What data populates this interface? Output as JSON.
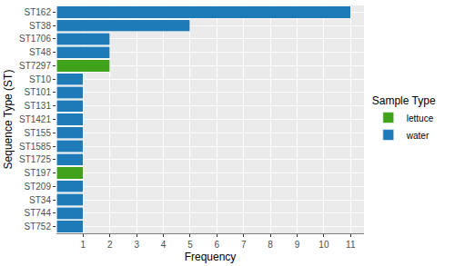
{
  "chart_data": {
    "type": "bar",
    "orientation": "horizontal",
    "stacked": true,
    "x_label": "Frequency",
    "y_label": "Sequence Type (ST)",
    "legend_title": "Sample Type",
    "legend": "right",
    "grid": true,
    "categories": [
      "ST162",
      "ST38",
      "ST1706",
      "ST48",
      "ST7297",
      "ST10",
      "ST101",
      "ST131",
      "ST1421",
      "ST155",
      "ST1585",
      "ST1725",
      "ST197",
      "ST209",
      "ST34",
      "ST744",
      "ST752"
    ],
    "series": [
      {
        "name": "lettuce",
        "color": "#40a31b",
        "values": [
          null,
          null,
          null,
          null,
          2,
          null,
          null,
          null,
          null,
          null,
          null,
          null,
          1,
          null,
          null,
          null,
          null
        ]
      },
      {
        "name": "water",
        "color": "#1f7ab8",
        "values": [
          11,
          5,
          2,
          2,
          null,
          1,
          1,
          1,
          1,
          1,
          1,
          1,
          null,
          1,
          1,
          1,
          1
        ]
      }
    ],
    "xlim": [
      0,
      11.5
    ],
    "xticks": [
      1,
      2,
      3,
      4,
      5,
      6,
      7,
      8,
      9,
      10,
      11
    ]
  }
}
